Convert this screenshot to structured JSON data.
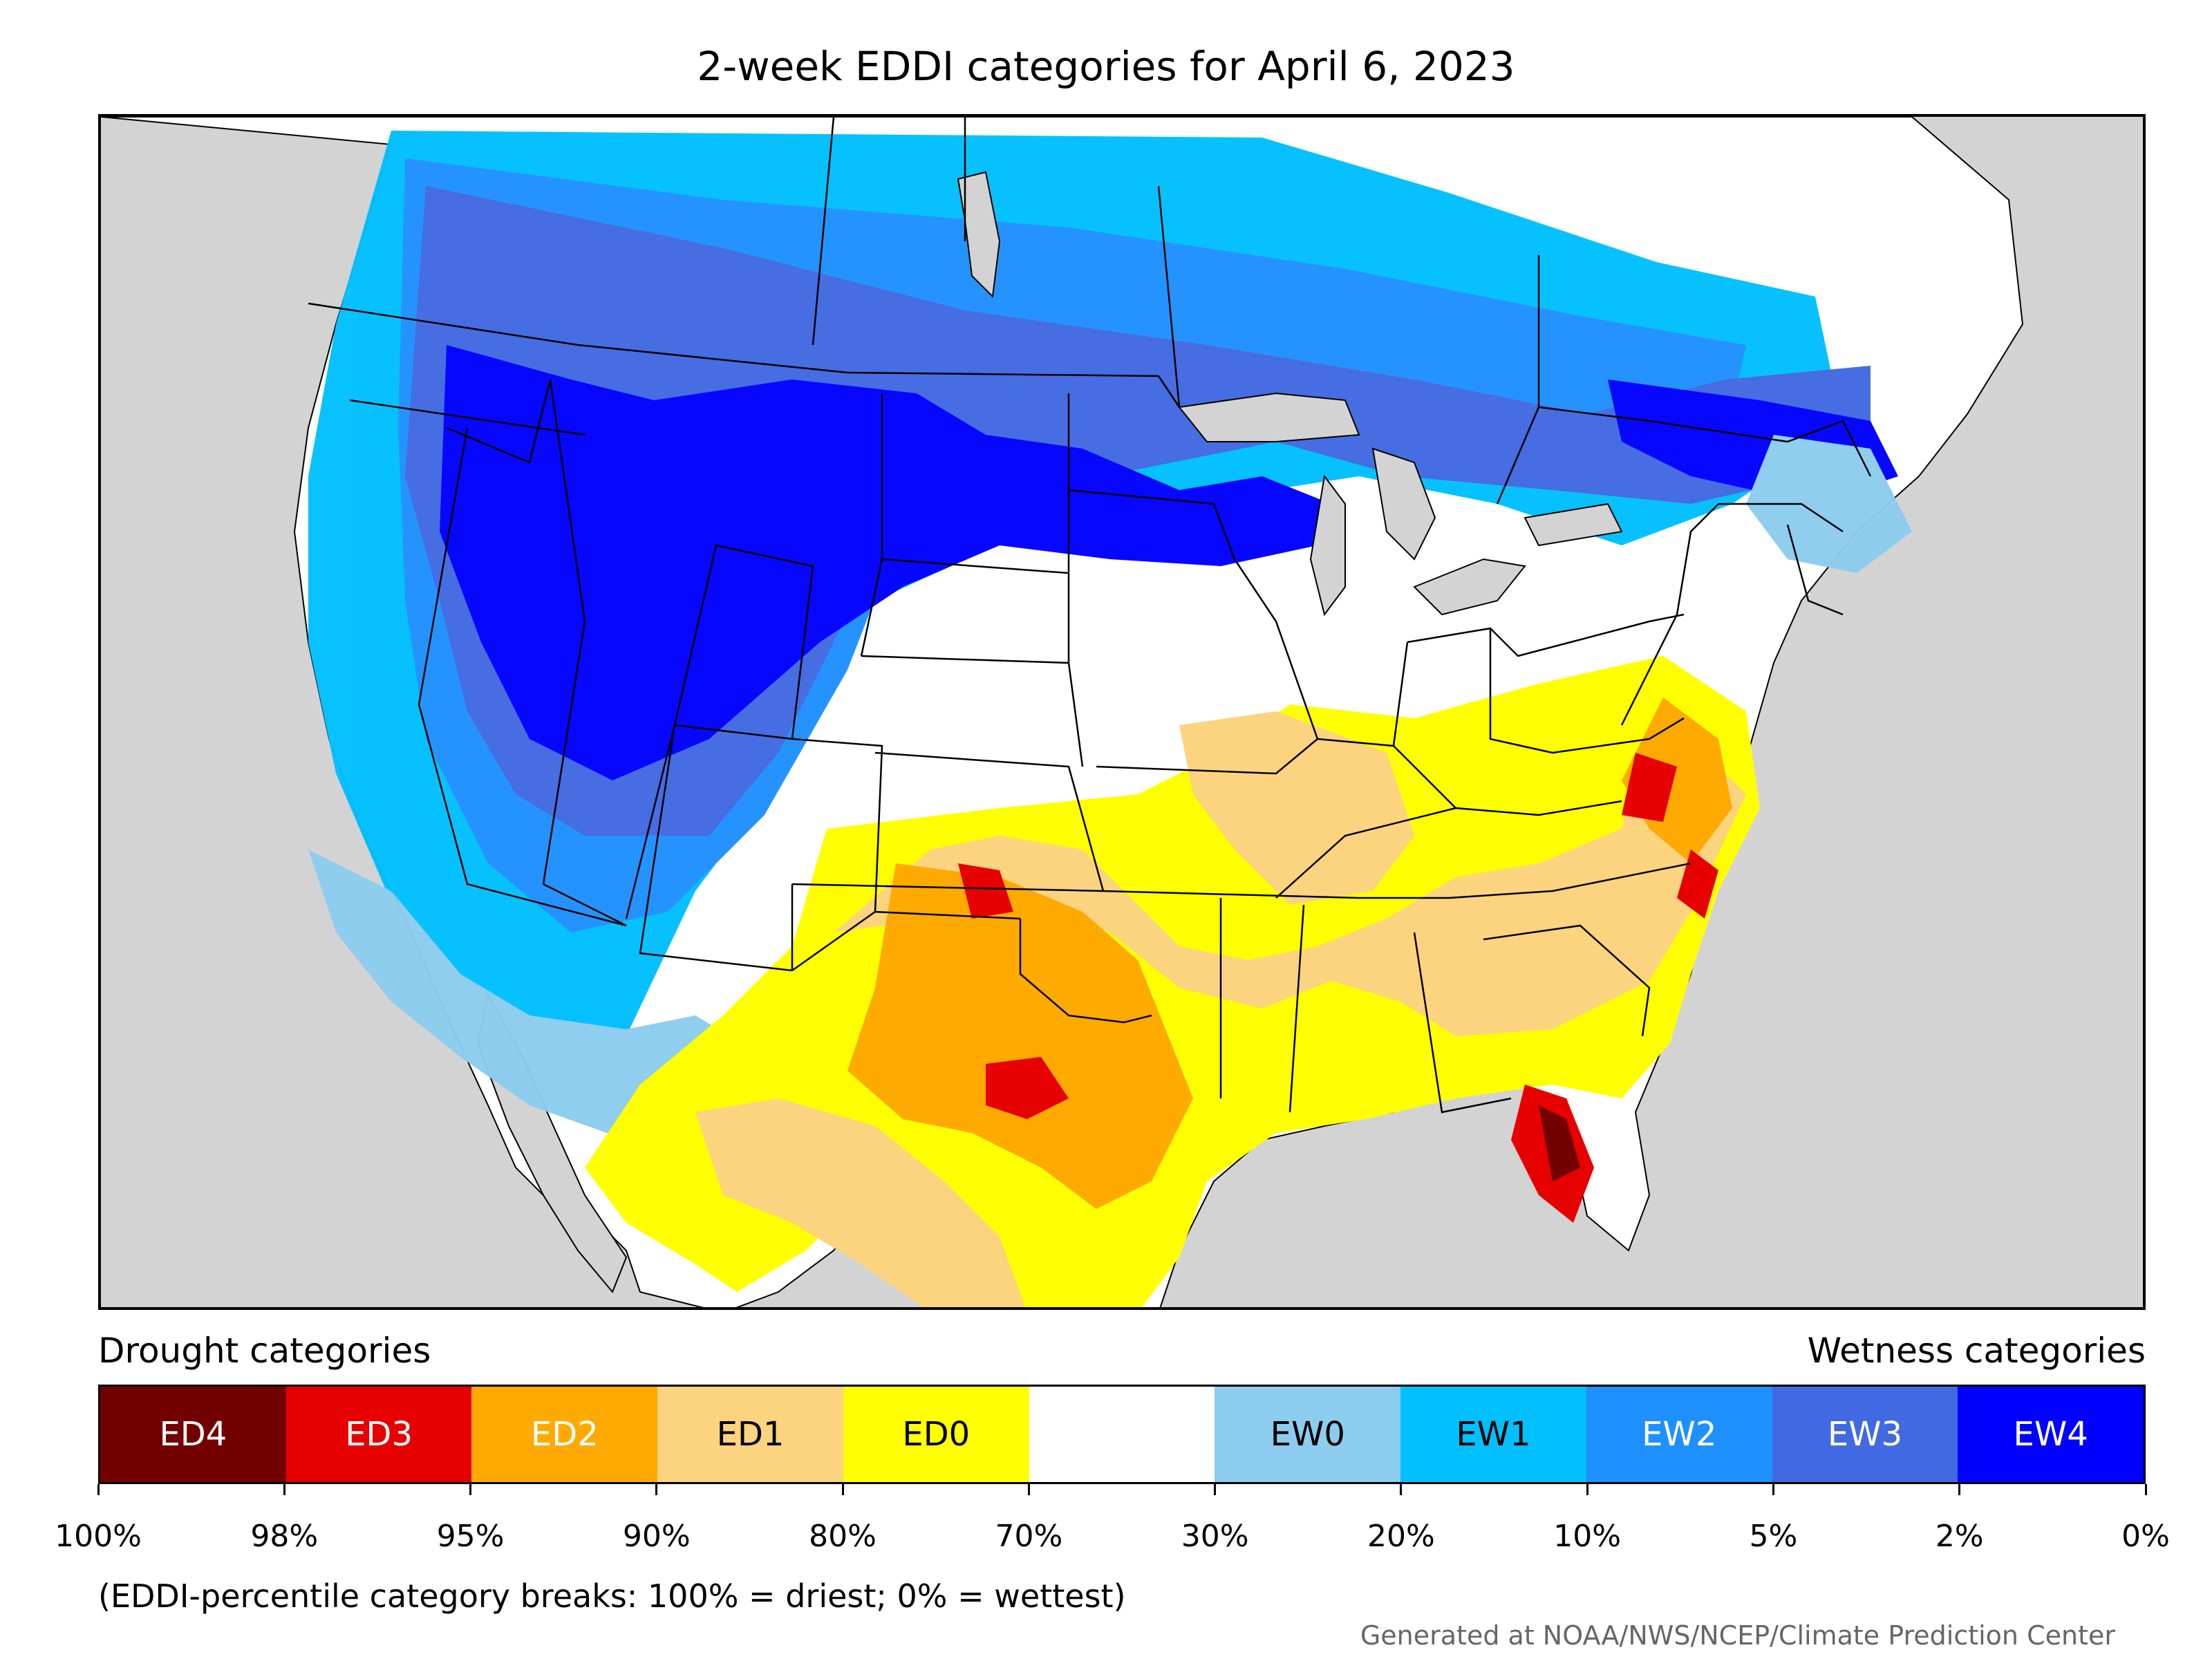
{
  "title": "2-week EDDI categories for April 6, 2023",
  "legend": {
    "left_title": "Drought categories",
    "right_title": "Wetness categories",
    "categories": [
      {
        "label": "ED4",
        "color": "#730000",
        "text_color": "#ffffff"
      },
      {
        "label": "ED3",
        "color": "#e60000",
        "text_color": "#ffffff"
      },
      {
        "label": "ED2",
        "color": "#ffaa00",
        "text_color": "#ffffff"
      },
      {
        "label": "ED1",
        "color": "#fcd37f",
        "text_color": "#000000"
      },
      {
        "label": "ED0",
        "color": "#ffff00",
        "text_color": "#000000"
      },
      {
        "label": "",
        "color": "#ffffff",
        "text_color": "#000000"
      },
      {
        "label": "EW0",
        "color": "#8ccdef",
        "text_color": "#000000"
      },
      {
        "label": "EW1",
        "color": "#00c0ff",
        "text_color": "#000000"
      },
      {
        "label": "EW2",
        "color": "#1e90ff",
        "text_color": "#ffffff"
      },
      {
        "label": "EW3",
        "color": "#4169e1",
        "text_color": "#ffffff"
      },
      {
        "label": "EW4",
        "color": "#0000ff",
        "text_color": "#ffffff"
      }
    ],
    "breaks": [
      "100%",
      "98%",
      "95%",
      "90%",
      "80%",
      "70%",
      "30%",
      "20%",
      "10%",
      "5%",
      "2%",
      "0%"
    ]
  },
  "footnote": "(EDDI-percentile category breaks: 100% = driest; 0% = wettest)",
  "credit": "Generated at NOAA/NWS/NCEP/Climate Prediction Center",
  "map_colors": {
    "ocean": "#d3d3d3",
    "lakes": "#d3d3d3",
    "land_nodata": "#ffffff",
    "borders": "#000000"
  }
}
